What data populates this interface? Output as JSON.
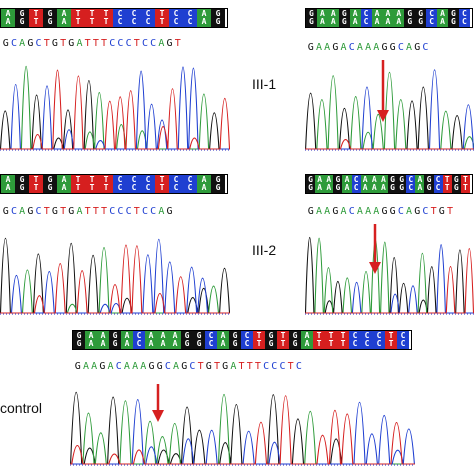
{
  "labels": {
    "iii1": "III-1",
    "iii2": "III-2",
    "control": "control"
  },
  "colors": {
    "A": "#2e9b3a",
    "C": "#1f3fd1",
    "G": "#111111",
    "T": "#d61f1f",
    "N": "#8a1f8a",
    "arrow": "#d62020"
  },
  "panels": {
    "iii1_left": {
      "sequence": "GCAGCTGTGATTTCCCTCCAGT",
      "bar": "AGTGATTTCCCTCCAG"
    },
    "iii1_right": {
      "sequence": "GAAGACAAAGGCAGC",
      "bar": "GAAGACAAAGGCAGC"
    },
    "iii2_left": {
      "sequence": "GCAGCTGTGATTTCCCTCCAG",
      "bar": "AGTGATTTCCCTCCAG"
    },
    "iii2_right": {
      "sequence": "GAAGACAAAGGCAGCTGT",
      "bar": "GAAGACAAAGGCAGCTGT"
    },
    "control": {
      "sequence": "GAAGACAAAGGCAGCTGTGATTTCCCTC",
      "bar": "GAAGACAAAGGCAGCTGTGATTTCCCTC"
    }
  }
}
